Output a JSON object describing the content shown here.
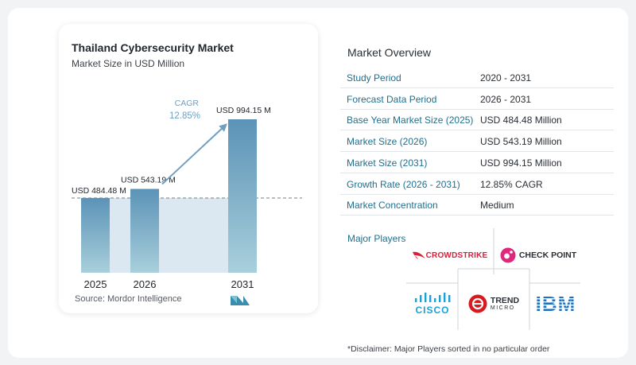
{
  "chart_title": "Thailand Cybersecurity Market",
  "chart_subtitle": "Market Size in USD Million",
  "cagr_label": "CAGR",
  "cagr_value": "12.85%",
  "source": "Source:  Mordor Intelligence",
  "chart_data": {
    "type": "bar",
    "title": "Thailand Cybersecurity Market",
    "subtitle": "Market Size in USD Million",
    "categories": [
      "2025",
      "2026",
      "2031"
    ],
    "values": [
      484.48,
      543.19,
      994.15
    ],
    "value_labels": [
      "USD 484.48 M",
      "USD 543.19 M",
      "USD 994.15 M"
    ],
    "ylim": [
      0,
      994.15
    ],
    "grid": false,
    "annotations": [
      "CAGR",
      "12.85%"
    ],
    "colors": {
      "bar_top": "#5b93b7",
      "bar_bottom": "#a9cfdb",
      "shade": "#dbe8f1",
      "arrow": "#6f9fc0"
    }
  },
  "overview": {
    "title": "Market Overview",
    "rows": [
      {
        "label": "Study Period",
        "value": "2020 - 2031"
      },
      {
        "label": "Forecast Data Period",
        "value": "2026 - 2031"
      },
      {
        "label": "Base Year Market Size (2025)",
        "value": "USD 484.48 Million"
      },
      {
        "label": "Market Size (2026)",
        "value": "USD 543.19 Million"
      },
      {
        "label": "Market Size (2031)",
        "value": "USD 994.15 Million"
      },
      {
        "label": "Growth Rate (2026 - 2031)",
        "value": "12.85% CAGR"
      },
      {
        "label": "Market Concentration",
        "value": "Medium"
      }
    ]
  },
  "players": {
    "title": "Major Players",
    "logos": [
      {
        "name": "CROWDSTRIKE",
        "icon": "falcon-icon",
        "color": "#d6213a"
      },
      {
        "name": "CHECK POINT",
        "icon": "check-point-icon",
        "color": "#e0267d"
      },
      {
        "name": "CISCO",
        "icon": "cisco-bars-icon",
        "color": "#1ba0d7"
      },
      {
        "name": "TREND",
        "name2": "MICRO",
        "icon": "trend-micro-icon",
        "color": "#d71920"
      },
      {
        "name": "IBM",
        "icon": "ibm-stripes-icon",
        "color": "#1f70c1"
      }
    ]
  },
  "disclaimer": "*Disclaimer: Major Players sorted in no particular order"
}
